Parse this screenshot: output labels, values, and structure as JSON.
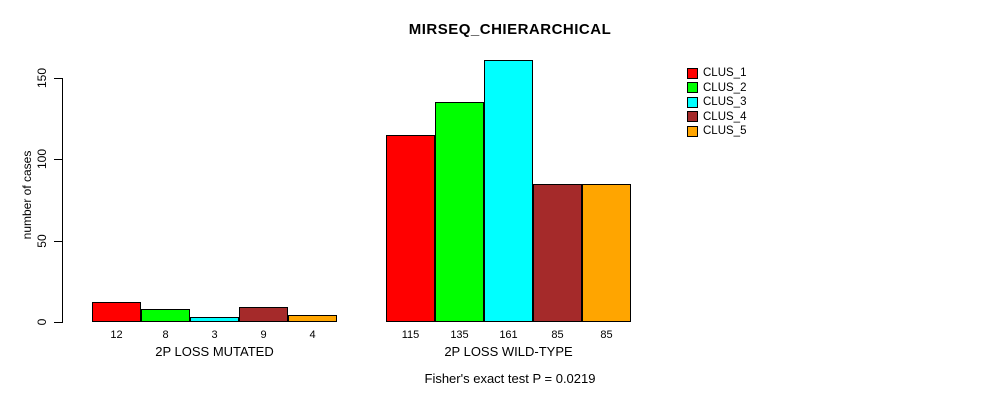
{
  "chart_data": {
    "type": "bar",
    "title": "MIRSEQ_CHIERARCHICAL",
    "xlabel": "",
    "ylabel": "number of cases",
    "categories": [
      "2P LOSS MUTATED",
      "2P LOSS WILD-TYPE"
    ],
    "series": [
      {
        "name": "CLUS_1",
        "color": "#FF0000",
        "values": [
          12,
          115
        ]
      },
      {
        "name": "CLUS_2",
        "color": "#00FF00",
        "values": [
          8,
          135
        ]
      },
      {
        "name": "CLUS_3",
        "color": "#00FFFF",
        "values": [
          3,
          161
        ]
      },
      {
        "name": "CLUS_4",
        "color": "#A52A2A",
        "values": [
          9,
          85
        ]
      },
      {
        "name": "CLUS_5",
        "color": "#FFA500",
        "values": [
          4,
          85
        ]
      }
    ],
    "yticks": [
      0,
      50,
      100,
      150
    ],
    "ylim": [
      0,
      150
    ],
    "grid": false,
    "bar_value_labels": true,
    "bar_border_color": "#000000",
    "legend_position": "top-right",
    "legend_entries": [
      "CLUS_1",
      "CLUS_2",
      "CLUS_3",
      "CLUS_4",
      "CLUS_5"
    ],
    "annotation": "Fisher's exact test P = 0.0219"
  }
}
